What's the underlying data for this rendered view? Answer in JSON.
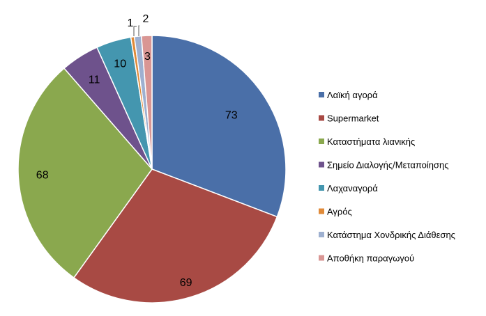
{
  "chart_data": {
    "type": "pie",
    "title": "",
    "start": "12 o'clock",
    "direction": "clockwise",
    "legend_position": "right",
    "slices": [
      {
        "label": "Λαϊκή αγορά",
        "value": 73,
        "color": "#4A6FA8"
      },
      {
        "label": "Supermarket",
        "value": 69,
        "color": "#A84A44"
      },
      {
        "label": "Καταστήματα λιανικής",
        "value": 68,
        "color": "#8AA84E"
      },
      {
        "label": "Σημείο Διαλογής/Μεταποίησης",
        "value": 11,
        "color": "#6E528C"
      },
      {
        "label": "Λαχαναγορά",
        "value": 10,
        "color": "#4496AF"
      },
      {
        "label": "Αγρός",
        "value": 1,
        "color": "#E08A38"
      },
      {
        "label": "Κατάστημα Χονδρικής Διάθεσης",
        "value": 2,
        "color": "#9EB0D0"
      },
      {
        "label": "Αποθήκη παραγωγού",
        "value": 3,
        "color": "#D99694"
      }
    ]
  }
}
